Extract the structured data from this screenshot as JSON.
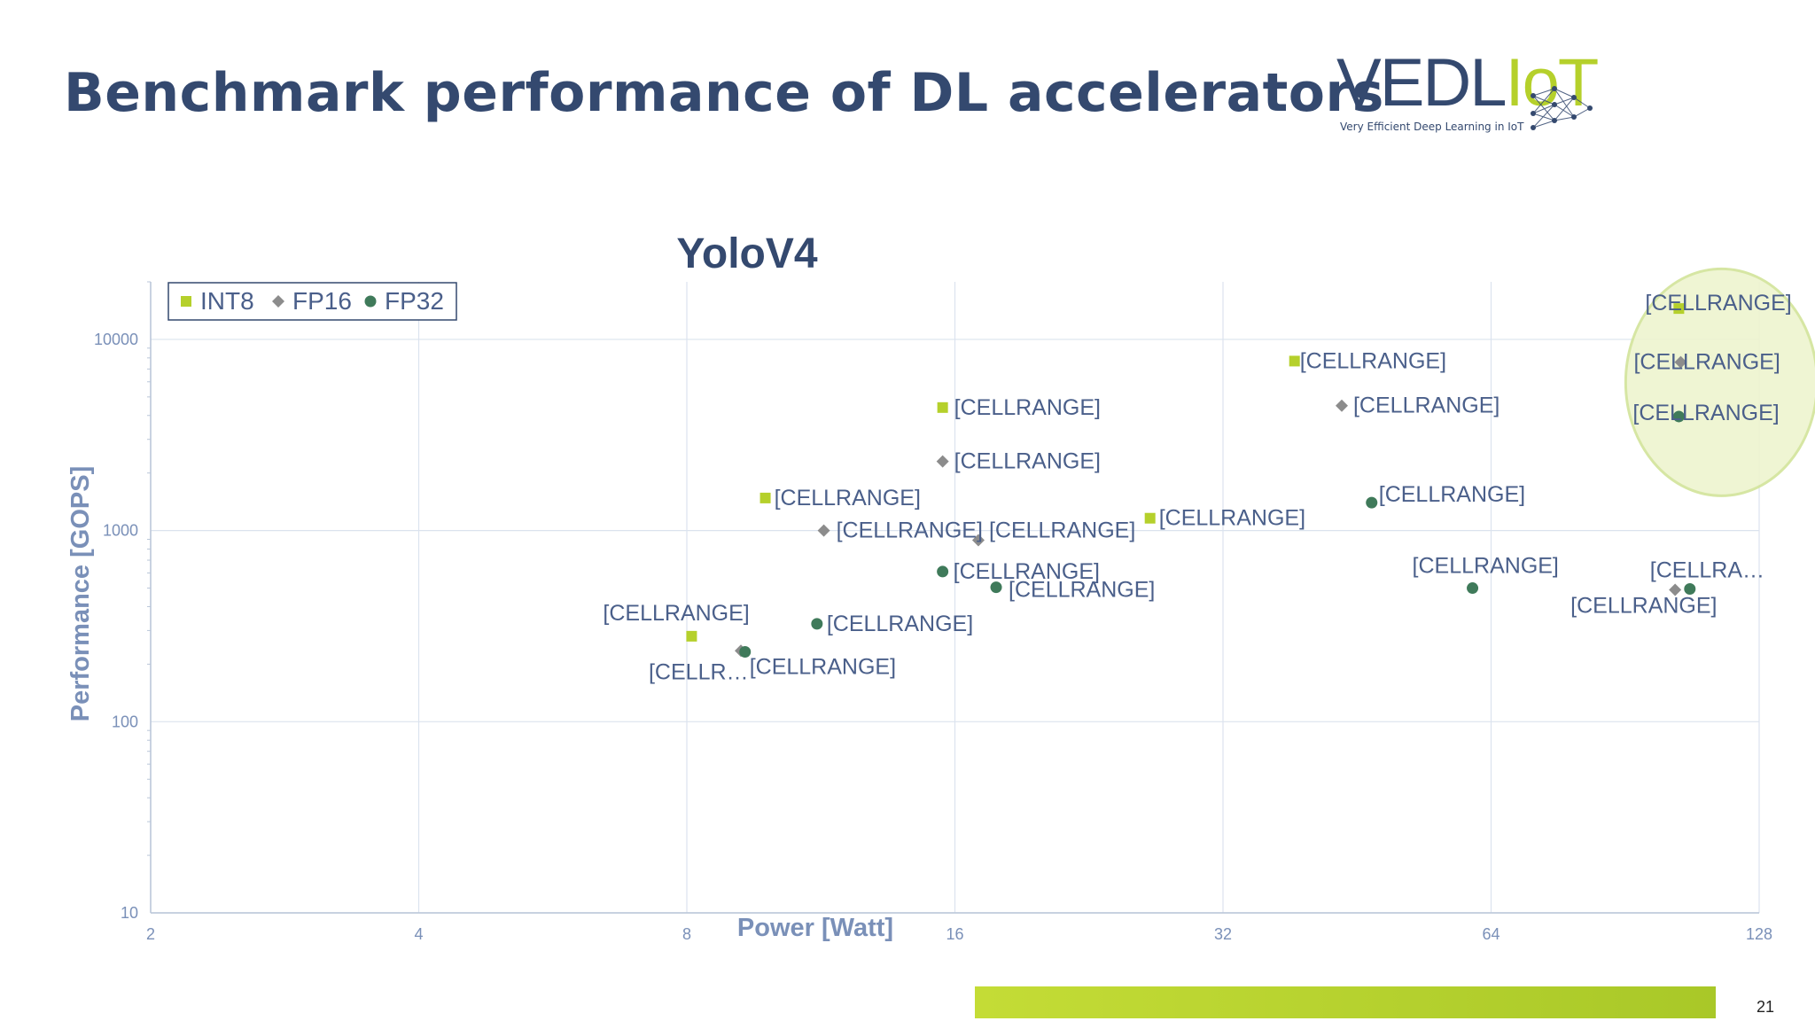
{
  "slide": {
    "title": "Benchmark performance of DL accelerators",
    "page_number": "21"
  },
  "logo": {
    "word_main": "VEDL",
    "word_accent": "IoT",
    "tagline": "Very Efficient Deep Learning in IoT"
  },
  "colors": {
    "title": "#34496f",
    "axis_text": "#7a90b8",
    "label_text": "#4a5f8a",
    "grid": "#dbe3ee",
    "INT8": "#b5d02b",
    "FP16": "#8c8c8c",
    "FP32": "#3f7a5a",
    "highlight_fill": "#eef4cf",
    "highlight_stroke": "#d2e49a",
    "footer_bar": "#b5d02b"
  },
  "chart_data": {
    "type": "scatter",
    "title": "YoloV4",
    "xlabel": "Power [Watt]",
    "ylabel": "Performance [GOPS]",
    "x_scale": "log2",
    "y_scale": "log10",
    "xlim": [
      2,
      128
    ],
    "ylim": [
      10,
      20000
    ],
    "x_ticks": [
      2,
      4,
      8,
      16,
      32,
      64,
      128
    ],
    "x_tick_labels": [
      "2",
      "4",
      "8",
      "16",
      "32",
      "64",
      "128"
    ],
    "y_ticks": [
      10,
      100,
      1000,
      10000
    ],
    "y_tick_labels": [
      "10",
      "100",
      "1000",
      "10000"
    ],
    "grid": true,
    "legend_position": "top-left",
    "series": [
      {
        "name": "INT8",
        "marker": "square",
        "points": [
          {
            "x": 8.1,
            "y": 280,
            "label": "[CELLRANGE]"
          },
          {
            "x": 9.8,
            "y": 1480,
            "label": "[CELLRANGE]"
          },
          {
            "x": 15.5,
            "y": 4400,
            "label": "[CELLRANGE]"
          },
          {
            "x": 26.5,
            "y": 1160,
            "label": "[CELLRANGE]"
          },
          {
            "x": 38.5,
            "y": 7700,
            "label": "[CELLRANGE]"
          },
          {
            "x": 104,
            "y": 14500,
            "label": "[CELLRANGE]"
          }
        ]
      },
      {
        "name": "FP16",
        "marker": "diamond",
        "points": [
          {
            "x": 9.2,
            "y": 235,
            "label": "[CELLR…"
          },
          {
            "x": 11.4,
            "y": 1000,
            "label": "[CELLRANGE]"
          },
          {
            "x": 15.5,
            "y": 2300,
            "label": "[CELLRANGE]"
          },
          {
            "x": 17.0,
            "y": 890,
            "label": "[CELLRANGE]"
          },
          {
            "x": 43.5,
            "y": 4500,
            "label": "[CELLRANGE]"
          },
          {
            "x": 103,
            "y": 490,
            "label": "[CELLRANGE]"
          },
          {
            "x": 104.5,
            "y": 7600,
            "label": "[CELLRANGE]"
          }
        ]
      },
      {
        "name": "FP32",
        "marker": "circle",
        "points": [
          {
            "x": 9.3,
            "y": 232,
            "label": "[CELLRANGE]"
          },
          {
            "x": 11.2,
            "y": 325,
            "label": "[CELLRANGE]"
          },
          {
            "x": 15.5,
            "y": 610,
            "label": "[CELLRANGE]"
          },
          {
            "x": 17.8,
            "y": 505,
            "label": "[CELLRANGE]"
          },
          {
            "x": 47,
            "y": 1400,
            "label": "[CELLRANGE]"
          },
          {
            "x": 61,
            "y": 500,
            "label": "[CELLRANGE]"
          },
          {
            "x": 104,
            "y": 3950,
            "label": "[CELLRANGE]"
          },
          {
            "x": 107,
            "y": 495,
            "label": "[CELLRA…"
          }
        ]
      }
    ]
  }
}
